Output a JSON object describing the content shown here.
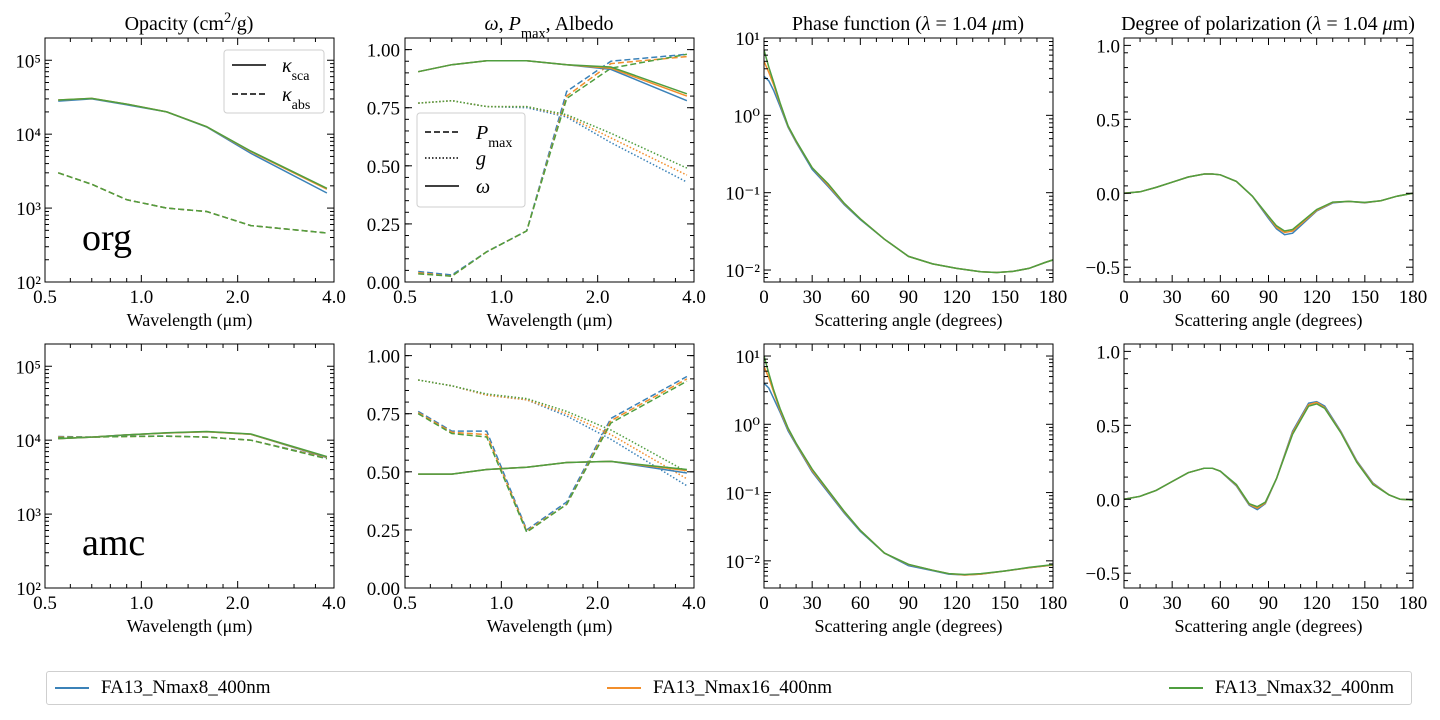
{
  "colors": {
    "blue": "#3b82b8",
    "orange": "#f28e2b",
    "green": "#4f9e3f"
  },
  "legend": [
    {
      "label": "FA13_Nmax8_400nm",
      "color": "#3b82b8"
    },
    {
      "label": "FA13_Nmax16_400nm",
      "color": "#f28e2b"
    },
    {
      "label": "FA13_Nmax32_400nm",
      "color": "#4f9e3f"
    }
  ],
  "columns": {
    "opacity_title": "Opacity (cm²/g)",
    "omega_title": "ω, P_max, Albedo",
    "phase_title": "Phase function (λ = 1.04 μm)",
    "pol_title": "Degree of polarization (λ = 1.04 μm)"
  },
  "axis_labels": {
    "wavelength": "Wavelength (μm)",
    "angle": "Scattering angle (degrees)"
  },
  "row_labels": [
    "org",
    "amc"
  ],
  "legend_opacity": [
    "κ_sca",
    "κ_abs"
  ],
  "legend_omega": [
    "P_max",
    "g",
    "ω"
  ],
  "ticks": {
    "wavelength": [
      "0.5",
      "1.0",
      "2.0",
      "4.0"
    ],
    "opacity_y": [
      "10²",
      "10³",
      "10⁴",
      "10⁵"
    ],
    "omega_y": [
      "0.00",
      "0.25",
      "0.50",
      "0.75",
      "1.00"
    ],
    "angle": [
      "0",
      "30",
      "60",
      "90",
      "120",
      "150",
      "180"
    ],
    "phase_y_top": [
      "10⁻²",
      "10⁻¹",
      "10⁰",
      "10¹"
    ],
    "phase_y_bottom": [
      "10⁻²",
      "10⁻¹",
      "10⁰",
      "10¹"
    ],
    "pol_y": [
      "−0.5",
      "0.0",
      "0.5",
      "1.0"
    ]
  },
  "chart_data": [
    {
      "type": "line",
      "panel": "org-opacity",
      "x_scale": "log",
      "y_scale": "log",
      "xlim": [
        0.5,
        4.0
      ],
      "ylim": [
        100,
        200000
      ],
      "x": [
        0.55,
        0.7,
        0.9,
        1.2,
        1.6,
        2.2,
        3.8
      ],
      "series": [
        {
          "name": "κ_sca",
          "line": "solid",
          "values": [
            28000,
            30000,
            25000,
            20000,
            12500,
            5600,
            1700
          ],
          "variants": [
            [
              28000,
              30000,
              25000,
              20000,
              12500,
              5500,
              1600
            ],
            [
              29000,
              30500,
              25500,
              20000,
              12600,
              5800,
              1800
            ],
            [
              29000,
              30500,
              25500,
              20000,
              12600,
              5900,
              1850
            ]
          ]
        },
        {
          "name": "κ_abs",
          "line": "dashed",
          "values": [
            3000,
            2100,
            1300,
            1000,
            900,
            580,
            460
          ],
          "variants": [
            [
              3000,
              2100,
              1300,
              1000,
              900,
              580,
              460
            ],
            [
              3000,
              2100,
              1300,
              1000,
              900,
              580,
              460
            ],
            [
              3000,
              2100,
              1300,
              1000,
              900,
              580,
              460
            ]
          ]
        }
      ]
    },
    {
      "type": "line",
      "panel": "org-omega",
      "x_scale": "log",
      "y_scale": "linear",
      "xlim": [
        0.5,
        4.0
      ],
      "ylim": [
        0,
        1.05
      ],
      "x": [
        0.55,
        0.7,
        0.9,
        1.2,
        1.6,
        2.2,
        3.8
      ],
      "series": [
        {
          "name": "P_max",
          "line": "dashed",
          "variants": [
            [
              0.045,
              0.03,
              0.13,
              0.22,
              0.82,
              0.95,
              0.98
            ],
            [
              0.04,
              0.025,
              0.13,
              0.22,
              0.8,
              0.94,
              0.97
            ],
            [
              0.035,
              0.025,
              0.13,
              0.22,
              0.79,
              0.92,
              0.98
            ]
          ]
        },
        {
          "name": "g",
          "line": "dotted",
          "variants": [
            [
              0.77,
              0.78,
              0.755,
              0.75,
              0.71,
              0.6,
              0.43
            ],
            [
              0.77,
              0.78,
              0.755,
              0.755,
              0.715,
              0.62,
              0.46
            ],
            [
              0.77,
              0.78,
              0.755,
              0.755,
              0.72,
              0.64,
              0.49
            ]
          ]
        },
        {
          "name": "ω",
          "line": "solid",
          "variants": [
            [
              0.905,
              0.935,
              0.952,
              0.952,
              0.935,
              0.915,
              0.78
            ],
            [
              0.905,
              0.935,
              0.952,
              0.952,
              0.935,
              0.92,
              0.8
            ],
            [
              0.905,
              0.935,
              0.952,
              0.952,
              0.935,
              0.925,
              0.81
            ]
          ]
        }
      ]
    },
    {
      "type": "line",
      "panel": "org-phase",
      "x_scale": "linear",
      "y_scale": "log",
      "xlim": [
        0,
        180
      ],
      "ylim": [
        0.007,
        10
      ],
      "x": [
        0,
        3,
        6,
        10,
        15,
        20,
        30,
        40,
        50,
        60,
        75,
        90,
        105,
        120,
        135,
        145,
        155,
        165,
        175,
        180
      ],
      "series": [
        {
          "name": "FA13_Nmax8_400nm",
          "values": [
            3.2,
            2.8,
            2.1,
            1.3,
            0.7,
            0.45,
            0.2,
            0.12,
            0.07,
            0.045,
            0.025,
            0.015,
            0.012,
            0.0105,
            0.0095,
            0.0093,
            0.0096,
            0.0105,
            0.0125,
            0.0135
          ]
        },
        {
          "name": "FA13_Nmax16_400nm",
          "values": [
            5.0,
            3.6,
            2.5,
            1.4,
            0.72,
            0.46,
            0.21,
            0.125,
            0.072,
            0.046,
            0.025,
            0.015,
            0.012,
            0.0105,
            0.0095,
            0.0093,
            0.0096,
            0.0105,
            0.0125,
            0.0135
          ]
        },
        {
          "name": "FA13_Nmax32_400nm",
          "values": [
            7.0,
            4.2,
            2.7,
            1.45,
            0.73,
            0.47,
            0.21,
            0.13,
            0.073,
            0.046,
            0.025,
            0.015,
            0.012,
            0.0105,
            0.0095,
            0.0093,
            0.0096,
            0.0105,
            0.0125,
            0.0135
          ]
        }
      ]
    },
    {
      "type": "line",
      "panel": "org-pol",
      "x_scale": "linear",
      "y_scale": "linear",
      "xlim": [
        0,
        180
      ],
      "ylim": [
        -0.6,
        1.05
      ],
      "x": [
        0,
        10,
        20,
        30,
        40,
        50,
        55,
        60,
        70,
        80,
        90,
        95,
        100,
        105,
        110,
        120,
        130,
        140,
        150,
        160,
        170,
        180
      ],
      "series": [
        {
          "name": "FA13_Nmax8_400nm",
          "values": [
            0.0,
            0.01,
            0.04,
            0.075,
            0.11,
            0.13,
            0.13,
            0.125,
            0.08,
            -0.02,
            -0.17,
            -0.24,
            -0.28,
            -0.27,
            -0.22,
            -0.12,
            -0.065,
            -0.055,
            -0.065,
            -0.05,
            -0.02,
            0.0
          ]
        },
        {
          "name": "FA13_Nmax16_400nm",
          "values": [
            0.0,
            0.01,
            0.04,
            0.075,
            0.11,
            0.13,
            0.13,
            0.125,
            0.08,
            -0.02,
            -0.16,
            -0.23,
            -0.265,
            -0.255,
            -0.21,
            -0.115,
            -0.062,
            -0.055,
            -0.063,
            -0.05,
            -0.02,
            0.0
          ]
        },
        {
          "name": "FA13_Nmax32_400nm",
          "values": [
            0.0,
            0.01,
            0.04,
            0.075,
            0.11,
            0.13,
            0.13,
            0.125,
            0.08,
            -0.02,
            -0.155,
            -0.22,
            -0.255,
            -0.245,
            -0.2,
            -0.11,
            -0.06,
            -0.055,
            -0.062,
            -0.05,
            -0.02,
            0.0
          ]
        }
      ]
    },
    {
      "type": "line",
      "panel": "amc-opacity",
      "x_scale": "log",
      "y_scale": "log",
      "xlim": [
        0.5,
        4.0
      ],
      "ylim": [
        100,
        200000
      ],
      "x": [
        0.55,
        0.7,
        0.9,
        1.2,
        1.6,
        2.2,
        3.8
      ],
      "series": [
        {
          "name": "κ_sca",
          "line": "solid",
          "values": [
            10500,
            11000,
            11800,
            12500,
            13000,
            12000,
            6000
          ],
          "variants": [
            [
              10500,
              11000,
              11800,
              12500,
              13000,
              12000,
              5800
            ],
            [
              10500,
              11000,
              11800,
              12500,
              13000,
              12000,
              5900
            ],
            [
              10500,
              11000,
              11800,
              12600,
              13100,
              12100,
              6000
            ]
          ]
        },
        {
          "name": "κ_abs",
          "line": "dashed",
          "values": [
            11000,
            11000,
            11200,
            11300,
            11000,
            10000,
            5700
          ],
          "variants": [
            [
              11200,
              11000,
              11300,
              11400,
              11000,
              10000,
              5800
            ],
            [
              11000,
              11000,
              11200,
              11300,
              11000,
              10000,
              5700
            ],
            [
              10800,
              11000,
              11200,
              11300,
              11000,
              10000,
              5600
            ]
          ]
        }
      ]
    },
    {
      "type": "line",
      "panel": "amc-omega",
      "x_scale": "log",
      "y_scale": "linear",
      "xlim": [
        0.5,
        4.0
      ],
      "ylim": [
        0,
        1.05
      ],
      "x": [
        0.55,
        0.7,
        0.9,
        1.2,
        1.6,
        2.2,
        3.8
      ],
      "series": [
        {
          "name": "P_max",
          "line": "dashed",
          "variants": [
            [
              0.76,
              0.675,
              0.675,
              0.25,
              0.37,
              0.73,
              0.91
            ],
            [
              0.755,
              0.67,
              0.66,
              0.245,
              0.36,
              0.72,
              0.9
            ],
            [
              0.75,
              0.665,
              0.65,
              0.24,
              0.36,
              0.71,
              0.89
            ]
          ]
        },
        {
          "name": "g",
          "line": "dotted",
          "variants": [
            [
              0.895,
              0.87,
              0.83,
              0.81,
              0.74,
              0.64,
              0.44
            ],
            [
              0.895,
              0.87,
              0.83,
              0.81,
              0.75,
              0.66,
              0.47
            ],
            [
              0.895,
              0.87,
              0.835,
              0.815,
              0.76,
              0.68,
              0.5
            ]
          ]
        },
        {
          "name": "ω",
          "line": "solid",
          "variants": [
            [
              0.49,
              0.49,
              0.51,
              0.52,
              0.54,
              0.545,
              0.495
            ],
            [
              0.49,
              0.49,
              0.51,
              0.52,
              0.54,
              0.545,
              0.505
            ],
            [
              0.49,
              0.49,
              0.51,
              0.52,
              0.54,
              0.545,
              0.51
            ]
          ]
        }
      ]
    },
    {
      "type": "line",
      "panel": "amc-phase",
      "x_scale": "linear",
      "y_scale": "log",
      "xlim": [
        0,
        180
      ],
      "ylim": [
        0.004,
        15
      ],
      "x": [
        0,
        3,
        6,
        10,
        15,
        20,
        30,
        40,
        50,
        60,
        75,
        90,
        105,
        115,
        125,
        135,
        150,
        165,
        180
      ],
      "series": [
        {
          "name": "FA13_Nmax8_400nm",
          "values": [
            4.0,
            3.4,
            2.4,
            1.5,
            0.8,
            0.5,
            0.2,
            0.1,
            0.05,
            0.027,
            0.013,
            0.0085,
            0.0072,
            0.0064,
            0.0062,
            0.0064,
            0.0071,
            0.0079,
            0.0087
          ]
        },
        {
          "name": "FA13_Nmax16_400nm",
          "values": [
            7.0,
            4.8,
            3.0,
            1.6,
            0.85,
            0.52,
            0.21,
            0.105,
            0.052,
            0.028,
            0.013,
            0.0088,
            0.0073,
            0.0065,
            0.0062,
            0.0064,
            0.0071,
            0.0079,
            0.0087
          ]
        },
        {
          "name": "FA13_Nmax32_400nm",
          "values": [
            10.0,
            5.6,
            3.2,
            1.7,
            0.88,
            0.53,
            0.22,
            0.108,
            0.053,
            0.028,
            0.013,
            0.0089,
            0.0073,
            0.0065,
            0.0063,
            0.0065,
            0.0071,
            0.008,
            0.0088
          ]
        }
      ]
    },
    {
      "type": "line",
      "panel": "amc-pol",
      "x_scale": "linear",
      "y_scale": "linear",
      "xlim": [
        0,
        180
      ],
      "ylim": [
        -0.6,
        1.05
      ],
      "x": [
        0,
        10,
        20,
        30,
        40,
        50,
        55,
        60,
        70,
        78,
        83,
        88,
        95,
        105,
        115,
        120,
        125,
        135,
        145,
        155,
        165,
        172,
        180
      ],
      "series": [
        {
          "name": "FA13_Nmax8_400nm",
          "values": [
            0.0,
            0.02,
            0.06,
            0.12,
            0.18,
            0.21,
            0.21,
            0.19,
            0.09,
            -0.04,
            -0.07,
            -0.03,
            0.14,
            0.46,
            0.65,
            0.66,
            0.63,
            0.46,
            0.26,
            0.11,
            0.03,
            0.0,
            -0.005
          ]
        },
        {
          "name": "FA13_Nmax16_400nm",
          "values": [
            0.0,
            0.02,
            0.06,
            0.12,
            0.18,
            0.21,
            0.21,
            0.19,
            0.095,
            -0.035,
            -0.06,
            -0.025,
            0.14,
            0.45,
            0.64,
            0.655,
            0.62,
            0.455,
            0.255,
            0.105,
            0.03,
            0.0,
            -0.005
          ]
        },
        {
          "name": "FA13_Nmax32_400nm",
          "values": [
            0.0,
            0.02,
            0.06,
            0.12,
            0.18,
            0.21,
            0.21,
            0.19,
            0.1,
            -0.03,
            -0.05,
            -0.02,
            0.14,
            0.44,
            0.63,
            0.645,
            0.615,
            0.45,
            0.25,
            0.1,
            0.03,
            0.0,
            -0.005
          ]
        }
      ]
    }
  ]
}
